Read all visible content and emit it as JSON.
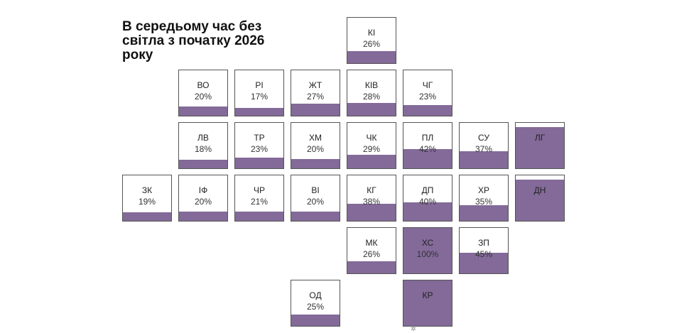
{
  "title": "В середьому час без світла з початку 2026 року",
  "colors": {
    "fill": "#836a99",
    "border": "#555555",
    "background": "#ffffff"
  },
  "chart_data": {
    "type": "tile-map",
    "title": "В середьому час без світла з початку 2026 року",
    "unit": "%",
    "regions": [
      {
        "code": "КІ",
        "label": "26%",
        "value": 26,
        "row": 0,
        "col": 4
      },
      {
        "code": "ВО",
        "label": "20%",
        "value": 20,
        "row": 1,
        "col": 1
      },
      {
        "code": "РІ",
        "label": "17%",
        "value": 17,
        "row": 1,
        "col": 2
      },
      {
        "code": "ЖТ",
        "label": "27%",
        "value": 27,
        "row": 1,
        "col": 3
      },
      {
        "code": "КІВ",
        "label": "28%",
        "value": 28,
        "row": 1,
        "col": 4
      },
      {
        "code": "ЧГ",
        "label": "23%",
        "value": 23,
        "row": 1,
        "col": 5
      },
      {
        "code": "ЛВ",
        "label": "18%",
        "value": 18,
        "row": 2,
        "col": 1
      },
      {
        "code": "ТР",
        "label": "23%",
        "value": 23,
        "row": 2,
        "col": 2
      },
      {
        "code": "ХМ",
        "label": "20%",
        "value": 20,
        "row": 2,
        "col": 3
      },
      {
        "code": "ЧК",
        "label": "29%",
        "value": 29,
        "row": 2,
        "col": 4
      },
      {
        "code": "ПЛ",
        "label": "42%",
        "value": 42,
        "row": 2,
        "col": 5
      },
      {
        "code": "СУ",
        "label": "37%",
        "value": 37,
        "row": 2,
        "col": 6
      },
      {
        "code": "ЛГ",
        "label": "",
        "value": 90,
        "row": 2,
        "col": 7
      },
      {
        "code": "ЗК",
        "label": "19%",
        "value": 19,
        "row": 3,
        "col": 0
      },
      {
        "code": "ІФ",
        "label": "20%",
        "value": 20,
        "row": 3,
        "col": 1
      },
      {
        "code": "ЧР",
        "label": "21%",
        "value": 21,
        "row": 3,
        "col": 2
      },
      {
        "code": "ВІ",
        "label": "20%",
        "value": 20,
        "row": 3,
        "col": 3
      },
      {
        "code": "КГ",
        "label": "38%",
        "value": 38,
        "row": 3,
        "col": 4
      },
      {
        "code": "ДП",
        "label": "40%",
        "value": 40,
        "row": 3,
        "col": 5
      },
      {
        "code": "ХР",
        "label": "35%",
        "value": 35,
        "row": 3,
        "col": 6
      },
      {
        "code": "ДН",
        "label": "",
        "value": 90,
        "row": 3,
        "col": 7
      },
      {
        "code": "МК",
        "label": "26%",
        "value": 26,
        "row": 4,
        "col": 4
      },
      {
        "code": "ХС",
        "label": "100%",
        "value": 100,
        "row": 4,
        "col": 5
      },
      {
        "code": "ЗП",
        "label": "45%",
        "value": 45,
        "row": 4,
        "col": 6
      },
      {
        "code": "ОД",
        "label": "25%",
        "value": 25,
        "row": 5,
        "col": 3
      },
      {
        "code": "КР",
        "label": "",
        "value": 100,
        "row": 5,
        "col": 5
      }
    ]
  }
}
